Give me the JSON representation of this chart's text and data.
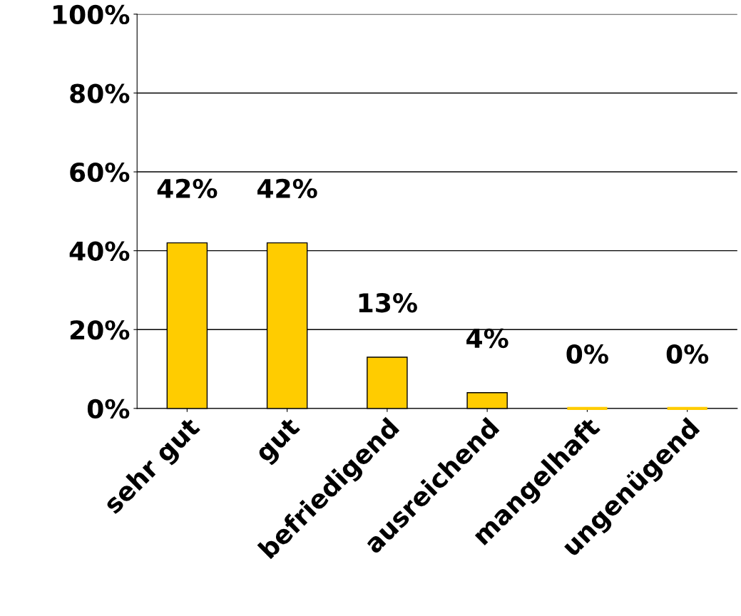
{
  "chart_data": {
    "type": "bar",
    "categories": [
      "sehr gut",
      "gut",
      "befriedigend",
      "ausreichend",
      "mangelhaft",
      "ungenügend"
    ],
    "values": [
      42,
      42,
      13,
      4,
      0,
      0
    ],
    "value_labels": [
      "42%",
      "42%",
      "13%",
      "4%",
      "0%",
      "0%"
    ],
    "color": "#ffcc00",
    "ylim": [
      0,
      100
    ],
    "yticks": [
      {
        "value": 0,
        "label": "0%"
      },
      {
        "value": 20,
        "label": "20%"
      },
      {
        "value": 40,
        "label": "40%"
      },
      {
        "value": 60,
        "label": "60%"
      },
      {
        "value": 80,
        "label": "80%"
      },
      {
        "value": 100,
        "label": "100%"
      }
    ],
    "grid": "y"
  }
}
